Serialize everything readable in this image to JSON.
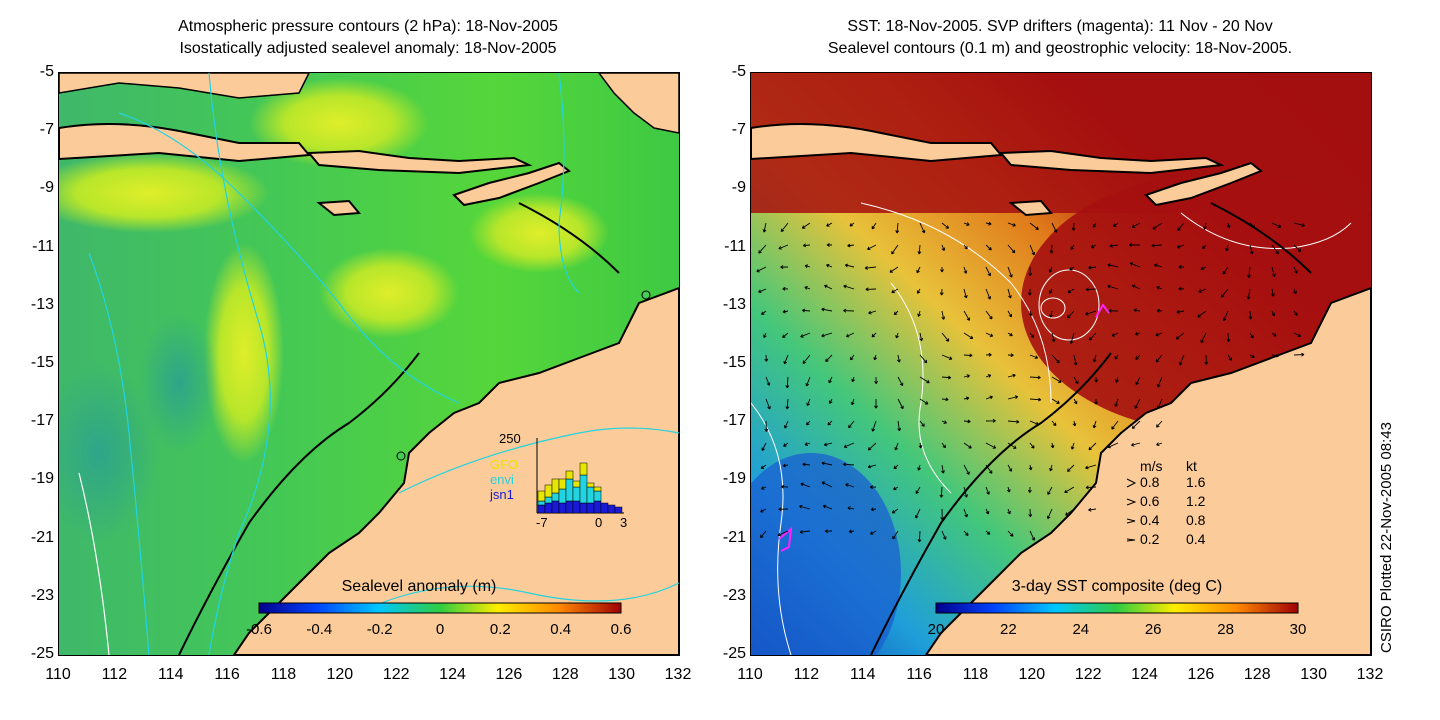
{
  "left_panel": {
    "title_line1": "Atmospheric pressure contours (2 hPa): 18-Nov-2005",
    "title_line2": "Isostatically adjusted sealevel anomaly: 18-Nov-2005",
    "colorbar_label": "Sealevel anomaly (m)",
    "colorbar_ticks": [
      "-0.6",
      "-0.4",
      "-0.2",
      "0",
      "0.2",
      "0.4",
      "0.6"
    ],
    "inset": {
      "ymax_label": "250",
      "legend": [
        {
          "label": "GFO",
          "color": "#e6e600"
        },
        {
          "label": "envi",
          "color": "#22d3e0"
        },
        {
          "label": "jsn1",
          "color": "#1a1ad6"
        }
      ],
      "x_ticks": [
        "-7",
        "0",
        "3"
      ]
    }
  },
  "right_panel": {
    "title_line1": "SST: 18-Nov-2005. SVP drifters (magenta): 11 Nov - 20 Nov",
    "title_line2": "Sealevel contours (0.1 m) and geostrophic velocity: 18-Nov-2005.",
    "colorbar_label": "3-day SST composite (deg C)",
    "colorbar_ticks": [
      "20",
      "22",
      "24",
      "26",
      "28",
      "30"
    ],
    "speed_legend": {
      "header_ms": "m/s",
      "header_kt": "kt",
      "rows": [
        {
          "ms": "0.8",
          "kt": "1.6"
        },
        {
          "ms": "0.6",
          "kt": "1.2"
        },
        {
          "ms": "0.4",
          "kt": "0.8"
        },
        {
          "ms": "0.2",
          "kt": "0.4"
        }
      ]
    }
  },
  "axes": {
    "y_ticks": [
      "-5",
      "-7",
      "-9",
      "-11",
      "-13",
      "-15",
      "-17",
      "-19",
      "-21",
      "-23",
      "-25"
    ],
    "x_ticks": [
      "110",
      "112",
      "114",
      "116",
      "118",
      "120",
      "122",
      "124",
      "126",
      "128",
      "130",
      "132"
    ]
  },
  "map_extent": {
    "lon": [
      110,
      132
    ],
    "lat": [
      -25,
      -5
    ]
  },
  "colors": {
    "land": "#fccb9a",
    "coast": "#000000",
    "sst_warm": "#a50f0f",
    "sla_green": "#33cc44"
  },
  "footer_credit": "CSIRO Plotted 22-Nov-2005 08:43"
}
